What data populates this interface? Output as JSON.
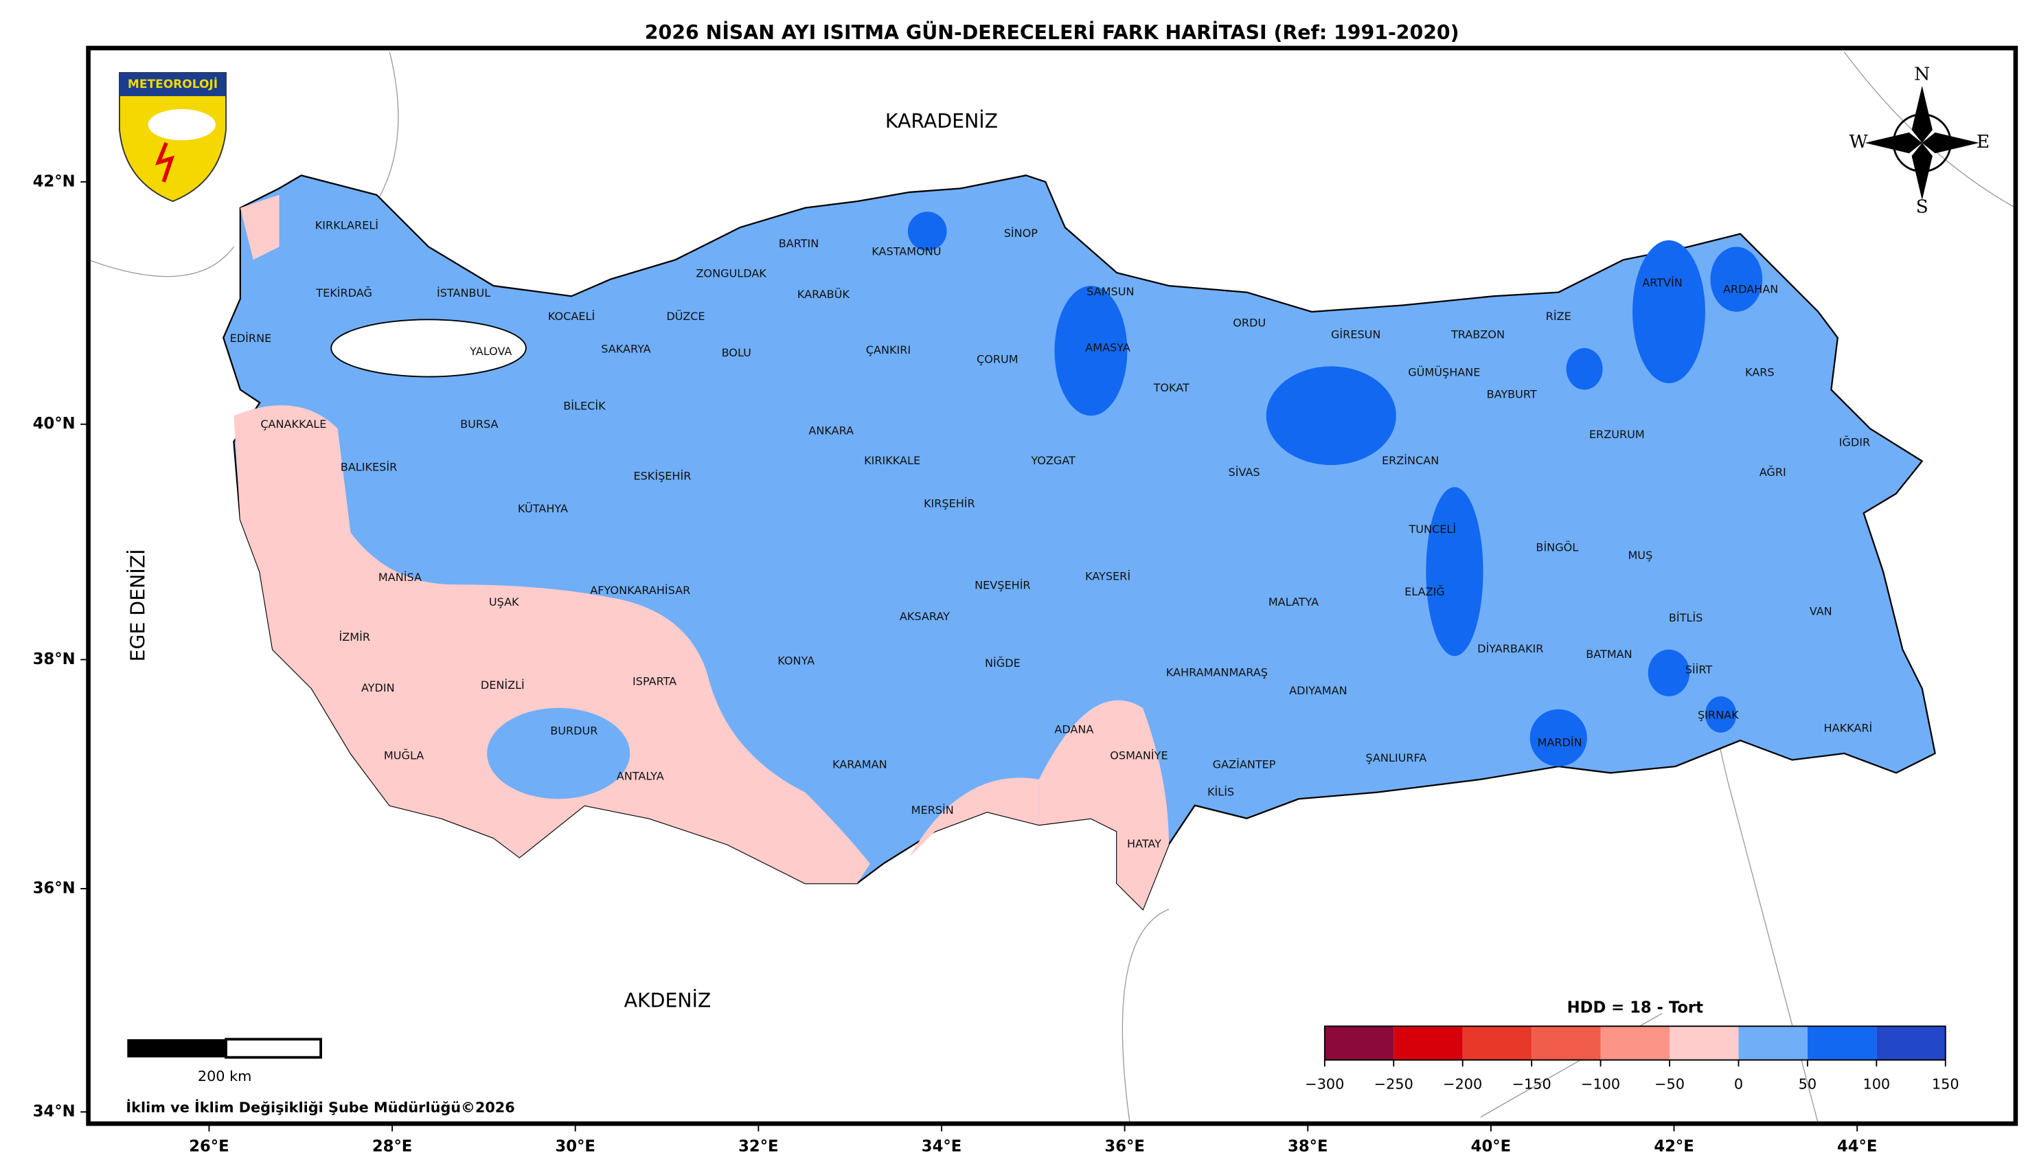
{
  "title": "2026 NİSAN AYI ISITMA GÜN-DERECELERİ FARK HARİTASI (Ref: 1991-2020)",
  "seas": {
    "black_sea": "KARADENİZ",
    "mediterranean": "AKDENİZ",
    "aegean": "EGE DENİZİ"
  },
  "logo_text": "METEOROLOJİ",
  "compass": {
    "n": "N",
    "e": "E",
    "s": "S",
    "w": "W"
  },
  "provinces": [
    "KIRKLARELİ",
    "TEKİRDAĞ",
    "EDİRNE",
    "İSTANBUL",
    "KOCAELİ",
    "YALOVA",
    "SAKARYA",
    "DÜZCE",
    "ZONGULDAK",
    "BARTIN",
    "KARABÜK",
    "KASTAMONU",
    "SİNOP",
    "SAMSUN",
    "BOLU",
    "ÇANKIRI",
    "ÇORUM",
    "AMASYA",
    "TOKAT",
    "ORDU",
    "GİRESUN",
    "TRABZON",
    "RİZE",
    "ARTVİN",
    "ARDAHAN",
    "KARS",
    "GÜMÜŞHANE",
    "BAYBURT",
    "ERZURUM",
    "ERZİNCAN",
    "IĞDIR",
    "AĞRI",
    "SİVAS",
    "YOZGAT",
    "KIRIKKALE",
    "ANKARA",
    "BİLECİK",
    "BURSA",
    "ÇANAKKALE",
    "BALIKESİR",
    "KÜTAHYA",
    "ESKİŞEHİR",
    "KIRŞEHİR",
    "TUNCELİ",
    "BİNGÖL",
    "MUŞ",
    "VAN",
    "BİTLİS",
    "MANİSA",
    "UŞAK",
    "AFYONKARAHİSAR",
    "NEVŞEHİR",
    "KAYSERİ",
    "MALATYA",
    "ELAZIĞ",
    "İZMİR",
    "AYDIN",
    "DENİZLİ",
    "ISPARTA",
    "KONYA",
    "AKSARAY",
    "NİĞDE",
    "KAHRAMANMARAŞ",
    "ADIYAMAN",
    "DİYARBAKIR",
    "BATMAN",
    "SİİRT",
    "ŞIRNAK",
    "HAKKARİ",
    "BURDUR",
    "MUĞLA",
    "ANTALYA",
    "KARAMAN",
    "ADANA",
    "OSMANİYE",
    "GAZİANTEP",
    "KİLİS",
    "ŞANLIURFA",
    "MARDİN",
    "MERSİN",
    "HATAY"
  ],
  "lat_ticks": [
    {
      "value": 42,
      "label": "42°N"
    },
    {
      "value": 40,
      "label": "40°N"
    },
    {
      "value": 38,
      "label": "38°N"
    },
    {
      "value": 36,
      "label": "36°N"
    },
    {
      "value": 34,
      "label": "34°N"
    }
  ],
  "lon_ticks": [
    {
      "value": 26,
      "label": "26°E"
    },
    {
      "value": 28,
      "label": "28°E"
    },
    {
      "value": 30,
      "label": "30°E"
    },
    {
      "value": 32,
      "label": "32°E"
    },
    {
      "value": 34,
      "label": "34°E"
    },
    {
      "value": 36,
      "label": "36°E"
    },
    {
      "value": 38,
      "label": "38°E"
    },
    {
      "value": 40,
      "label": "40°E"
    },
    {
      "value": 42,
      "label": "42°E"
    },
    {
      "value": 44,
      "label": "44°E"
    }
  ],
  "legend": {
    "title": "HDD = 18 - Tort",
    "ticks": [
      {
        "value": -300,
        "label": "−300"
      },
      {
        "value": -250,
        "label": "−250"
      },
      {
        "value": -200,
        "label": "−200"
      },
      {
        "value": -150,
        "label": "−150"
      },
      {
        "value": -100,
        "label": "−100"
      },
      {
        "value": -50,
        "label": "−50"
      },
      0,
      50,
      100,
      150
    ],
    "colors": [
      "#8b0a3b",
      "#d7000a",
      "#e8382a",
      "#f25c4a",
      "#fb9486",
      "#ffcccc",
      "#70aef8",
      "#1268f0",
      "#2247c8"
    ]
  },
  "scale_bar": "200 km",
  "credit": "İklim ve İklim Değişikliği Şube Müdürlüğü©2026"
}
